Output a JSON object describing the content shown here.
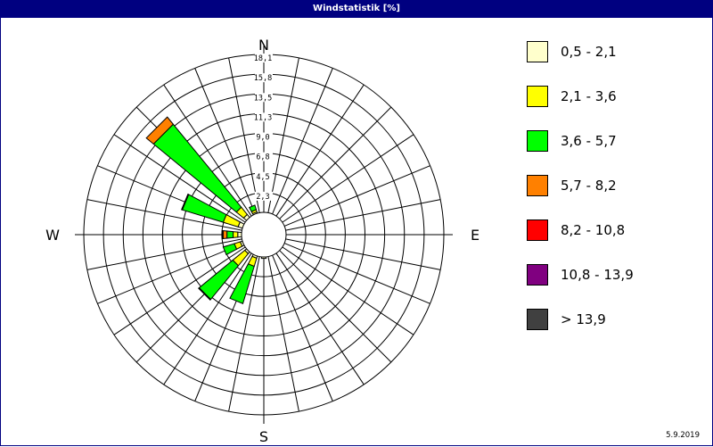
{
  "window": {
    "title": "Windstatistik [%]"
  },
  "footer": {
    "date": "5.9.2019"
  },
  "chart_data": {
    "type": "wind-rose",
    "title": "Windstatistik [%]",
    "compass_labels": [
      "N",
      "E",
      "S",
      "W"
    ],
    "radial_ticks": [
      "2,3",
      "4,5",
      "6,8",
      "9,0",
      "11,3",
      "13,5",
      "15,8",
      "18,1"
    ],
    "radial_max": 20.3,
    "sector_count": 16,
    "sectors_deg": [
      0,
      22.5,
      45,
      67.5,
      90,
      112.5,
      135,
      157.5,
      180,
      202.5,
      225,
      247.5,
      270,
      292.5,
      315,
      337.5
    ],
    "legend": [
      {
        "label": "0,5 - 2,1",
        "color": "#FFFFCC"
      },
      {
        "label": "2,1 - 3,6",
        "color": "#FFFF00"
      },
      {
        "label": "3,6 - 5,7",
        "color": "#00FF00"
      },
      {
        "label": "5,7 - 8,2",
        "color": "#FF8000"
      },
      {
        "label": "8,2 - 10,8",
        "color": "#FF0000"
      },
      {
        "label": "10,8 - 13,9",
        "color": "#800080"
      },
      {
        "label": "> 13,9",
        "color": "#404040"
      }
    ],
    "series": [
      {
        "name": "0,5 - 2,1",
        "values": [
          0,
          0,
          0,
          0,
          0,
          0,
          0,
          0,
          0.2,
          0.3,
          0.3,
          0.3,
          0.5,
          0.6,
          0.5,
          0.2
        ]
      },
      {
        "name": "2,1 - 3,6",
        "values": [
          0,
          0,
          0,
          0,
          0,
          0,
          0,
          0,
          0,
          1.1,
          2.0,
          0.8,
          0.6,
          2.0,
          1.2,
          0.3
        ]
      },
      {
        "name": "3,6 - 5,7",
        "values": [
          0,
          0,
          0,
          0,
          0,
          0,
          0,
          0,
          0,
          5.0,
          5.6,
          1.5,
          0.8,
          5.5,
          13.8,
          0.6
        ]
      },
      {
        "name": "5,7 - 8,2",
        "values": [
          0,
          0,
          0,
          0,
          0,
          0,
          0,
          0,
          0,
          0,
          0.1,
          0,
          0.5,
          0.1,
          1.2,
          0
        ]
      },
      {
        "name": "8,2 - 10,8",
        "values": [
          0,
          0,
          0,
          0,
          0,
          0,
          0,
          0,
          0,
          0,
          0,
          0,
          0.1,
          0,
          0,
          0
        ]
      },
      {
        "name": "10,8 - 13,9",
        "values": [
          0,
          0,
          0,
          0,
          0,
          0,
          0,
          0,
          0,
          0,
          0,
          0,
          0,
          0,
          0,
          0
        ]
      },
      {
        "name": "> 13,9",
        "values": [
          0,
          0,
          0,
          0,
          0,
          0,
          0,
          0,
          0,
          0,
          0,
          0,
          0,
          0,
          0,
          0
        ]
      }
    ]
  }
}
